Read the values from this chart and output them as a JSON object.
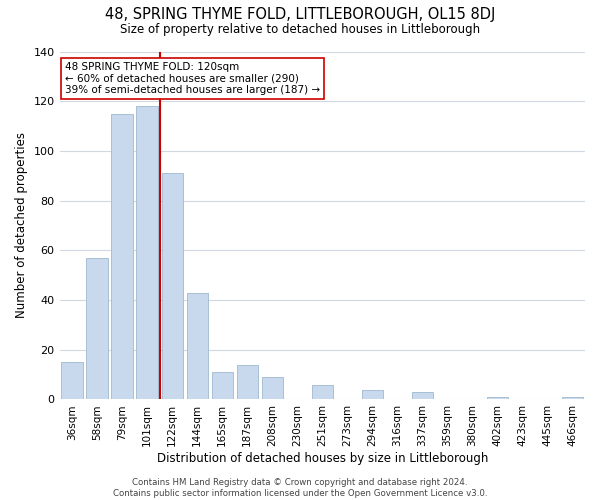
{
  "title": "48, SPRING THYME FOLD, LITTLEBOROUGH, OL15 8DJ",
  "subtitle": "Size of property relative to detached houses in Littleborough",
  "xlabel": "Distribution of detached houses by size in Littleborough",
  "ylabel": "Number of detached properties",
  "bar_color": "#c8d9ed",
  "bar_edge_color": "#a8bfd4",
  "categories": [
    "36sqm",
    "58sqm",
    "79sqm",
    "101sqm",
    "122sqm",
    "144sqm",
    "165sqm",
    "187sqm",
    "208sqm",
    "230sqm",
    "251sqm",
    "273sqm",
    "294sqm",
    "316sqm",
    "337sqm",
    "359sqm",
    "380sqm",
    "402sqm",
    "423sqm",
    "445sqm",
    "466sqm"
  ],
  "values": [
    15,
    57,
    115,
    118,
    91,
    43,
    11,
    14,
    9,
    0,
    6,
    0,
    4,
    0,
    3,
    0,
    0,
    1,
    0,
    0,
    1
  ],
  "vline_color": "#cc0000",
  "annotation_text": "48 SPRING THYME FOLD: 120sqm\n← 60% of detached houses are smaller (290)\n39% of semi-detached houses are larger (187) →",
  "annotation_box_color": "#ffffff",
  "annotation_box_edge": "#cc0000",
  "ylim": [
    0,
    140
  ],
  "yticks": [
    0,
    20,
    40,
    60,
    80,
    100,
    120,
    140
  ],
  "footer": "Contains HM Land Registry data © Crown copyright and database right 2024.\nContains public sector information licensed under the Open Government Licence v3.0.",
  "background_color": "#ffffff",
  "grid_color": "#d0d8e4"
}
